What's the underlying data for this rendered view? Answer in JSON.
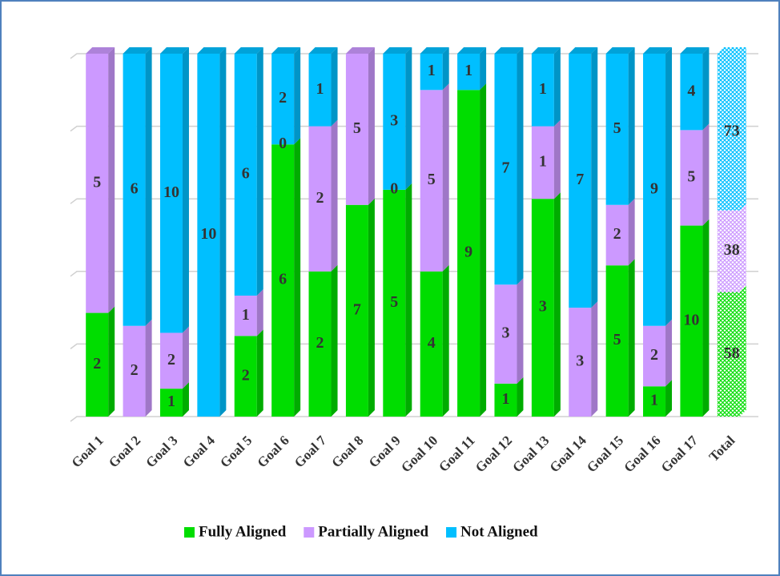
{
  "chart_data": {
    "type": "stacked_bar_100",
    "categories": [
      "Goal 1",
      "Goal 2",
      "Goal 3",
      "Goal 4",
      "Goal 5",
      "Goal 6",
      "Goal 7",
      "Goal 8",
      "Goal 9",
      "Goal 10",
      "Goal 11",
      "Goal 12",
      "Goal 13",
      "Goal 14",
      "Goal 15",
      "Goal 16",
      "Goal 17",
      "Total"
    ],
    "series": [
      {
        "name": "Fully Aligned",
        "color": "#00dd00",
        "values": [
          2,
          null,
          1,
          null,
          2,
          6,
          2,
          7,
          5,
          4,
          9,
          1,
          3,
          null,
          5,
          1,
          10,
          58
        ]
      },
      {
        "name": "Partially Aligned",
        "color": "#cc99ff",
        "values": [
          5,
          2,
          2,
          null,
          1,
          0,
          2,
          5,
          0,
          5,
          null,
          3,
          1,
          3,
          2,
          2,
          5,
          38
        ]
      },
      {
        "name": "Not Aligned",
        "color": "#00bfff",
        "values": [
          null,
          6,
          10,
          10,
          6,
          2,
          1,
          null,
          3,
          1,
          1,
          7,
          1,
          7,
          5,
          9,
          4,
          73
        ]
      }
    ],
    "ylim": [
      0,
      100
    ],
    "yticks": [
      0,
      20,
      40,
      60,
      80,
      100
    ],
    "grid": true,
    "legend": "bottom"
  }
}
